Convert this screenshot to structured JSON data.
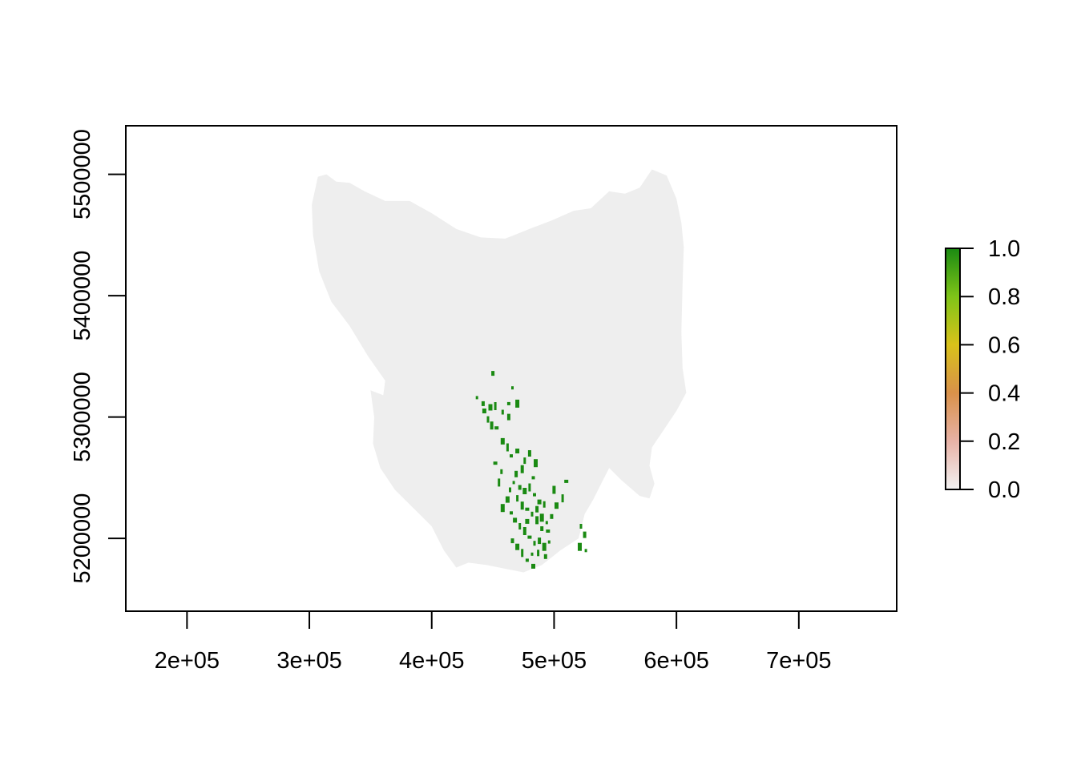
{
  "chart_data": {
    "type": "heatmap",
    "title": "",
    "xlabel": "",
    "ylabel": "",
    "xlim": [
      150000,
      780000
    ],
    "ylim": [
      5140000,
      5540000
    ],
    "x_ticks": [
      200000,
      300000,
      400000,
      500000,
      600000,
      700000
    ],
    "x_tick_labels": [
      "2e+05",
      "3e+05",
      "4e+05",
      "5e+05",
      "6e+05",
      "7e+05"
    ],
    "y_ticks": [
      5200000,
      5300000,
      5400000,
      5500000
    ],
    "y_tick_labels": [
      "5200000",
      "5300000",
      "5400000",
      "5500000"
    ],
    "grid": false,
    "land_color": "#eeeeee",
    "presence_color": "#1a8a12",
    "legend": {
      "position": "right",
      "type": "color-bar",
      "range": [
        0.0,
        1.0
      ],
      "ticks": [
        "0.0",
        "0.2",
        "0.4",
        "0.6",
        "0.8",
        "1.0"
      ],
      "colors": [
        "#f2f2f2",
        "#e8b2a6",
        "#d9914a",
        "#d9c21a",
        "#7fc418",
        "#1a8a12"
      ]
    },
    "land_outline": [
      [
        307000,
        5498000
      ],
      [
        314000,
        5500000
      ],
      [
        322000,
        5494000
      ],
      [
        333000,
        5493000
      ],
      [
        345000,
        5486000
      ],
      [
        362000,
        5478000
      ],
      [
        382000,
        5478000
      ],
      [
        400000,
        5468000
      ],
      [
        420000,
        5455000
      ],
      [
        440000,
        5448000
      ],
      [
        460000,
        5447000
      ],
      [
        480000,
        5455000
      ],
      [
        498000,
        5462000
      ],
      [
        516000,
        5470000
      ],
      [
        530000,
        5472000
      ],
      [
        545000,
        5486000
      ],
      [
        558000,
        5484000
      ],
      [
        570000,
        5489000
      ],
      [
        580000,
        5504000
      ],
      [
        592000,
        5499000
      ],
      [
        600000,
        5480000
      ],
      [
        604000,
        5460000
      ],
      [
        606000,
        5440000
      ],
      [
        605000,
        5410000
      ],
      [
        604000,
        5370000
      ],
      [
        605000,
        5340000
      ],
      [
        608000,
        5320000
      ],
      [
        600000,
        5305000
      ],
      [
        590000,
        5290000
      ],
      [
        580000,
        5275000
      ],
      [
        578000,
        5260000
      ],
      [
        582000,
        5245000
      ],
      [
        578000,
        5233000
      ],
      [
        570000,
        5235000
      ],
      [
        555000,
        5248000
      ],
      [
        545000,
        5258000
      ],
      [
        540000,
        5248000
      ],
      [
        532000,
        5232000
      ],
      [
        525000,
        5220000
      ],
      [
        520000,
        5200000
      ],
      [
        505000,
        5190000
      ],
      [
        490000,
        5178000
      ],
      [
        475000,
        5172000
      ],
      [
        460000,
        5175000
      ],
      [
        445000,
        5178000
      ],
      [
        430000,
        5180000
      ],
      [
        420000,
        5176000
      ],
      [
        410000,
        5190000
      ],
      [
        400000,
        5210000
      ],
      [
        385000,
        5225000
      ],
      [
        370000,
        5240000
      ],
      [
        358000,
        5258000
      ],
      [
        352000,
        5278000
      ],
      [
        353000,
        5300000
      ],
      [
        350000,
        5322000
      ],
      [
        368000,
        5315000
      ],
      [
        370000,
        5305000
      ],
      [
        358000,
        5300000
      ],
      [
        362000,
        5330000
      ],
      [
        348000,
        5350000
      ],
      [
        333000,
        5375000
      ],
      [
        318000,
        5395000
      ],
      [
        308000,
        5420000
      ],
      [
        303000,
        5450000
      ],
      [
        302000,
        5475000
      ]
    ],
    "presence_cells": [
      [
        437000,
        5316000
      ],
      [
        442000,
        5311000
      ],
      [
        448000,
        5308000
      ],
      [
        452000,
        5309000
      ],
      [
        463000,
        5311000
      ],
      [
        443000,
        5305000
      ],
      [
        446000,
        5298000
      ],
      [
        449000,
        5293000
      ],
      [
        453000,
        5291000
      ],
      [
        458000,
        5304000
      ],
      [
        463000,
        5300000
      ],
      [
        470000,
        5311000
      ],
      [
        466000,
        5324000
      ],
      [
        450000,
        5336000
      ],
      [
        458000,
        5280000
      ],
      [
        462000,
        5275000
      ],
      [
        465000,
        5268000
      ],
      [
        470000,
        5272000
      ],
      [
        476000,
        5264000
      ],
      [
        474000,
        5257000
      ],
      [
        452000,
        5262000
      ],
      [
        457000,
        5255000
      ],
      [
        480000,
        5270000
      ],
      [
        485000,
        5262000
      ],
      [
        467000,
        5246000
      ],
      [
        472000,
        5242000
      ],
      [
        476000,
        5239000
      ],
      [
        480000,
        5242000
      ],
      [
        484000,
        5236000
      ],
      [
        488000,
        5230000
      ],
      [
        470000,
        5233000
      ],
      [
        474000,
        5227000
      ],
      [
        478000,
        5224000
      ],
      [
        482000,
        5220000
      ],
      [
        486000,
        5224000
      ],
      [
        490000,
        5217000
      ],
      [
        494000,
        5213000
      ],
      [
        498000,
        5218000
      ],
      [
        502000,
        5227000
      ],
      [
        507000,
        5233000
      ],
      [
        465000,
        5221000
      ],
      [
        468000,
        5215000
      ],
      [
        472000,
        5210000
      ],
      [
        476000,
        5206000
      ],
      [
        480000,
        5201000
      ],
      [
        484000,
        5196000
      ],
      [
        488000,
        5198000
      ],
      [
        492000,
        5193000
      ],
      [
        496000,
        5197000
      ],
      [
        466000,
        5198000
      ],
      [
        470000,
        5193000
      ],
      [
        474000,
        5188000
      ],
      [
        478000,
        5182000
      ],
      [
        483000,
        5177000
      ],
      [
        487000,
        5188000
      ],
      [
        500000,
        5240000
      ],
      [
        510000,
        5247000
      ],
      [
        522000,
        5210000
      ],
      [
        525000,
        5203000
      ],
      [
        521000,
        5193000
      ],
      [
        526000,
        5190000
      ],
      [
        490000,
        5208000
      ],
      [
        462000,
        5232000
      ],
      [
        455000,
        5246000
      ],
      [
        483000,
        5250000
      ],
      [
        478000,
        5214000
      ],
      [
        492000,
        5228000
      ],
      [
        486000,
        5215000
      ],
      [
        495000,
        5206000
      ],
      [
        464000,
        5240000
      ],
      [
        469000,
        5253000
      ],
      [
        458000,
        5225000
      ],
      [
        482000,
        5187000
      ],
      [
        493000,
        5185000
      ]
    ]
  }
}
